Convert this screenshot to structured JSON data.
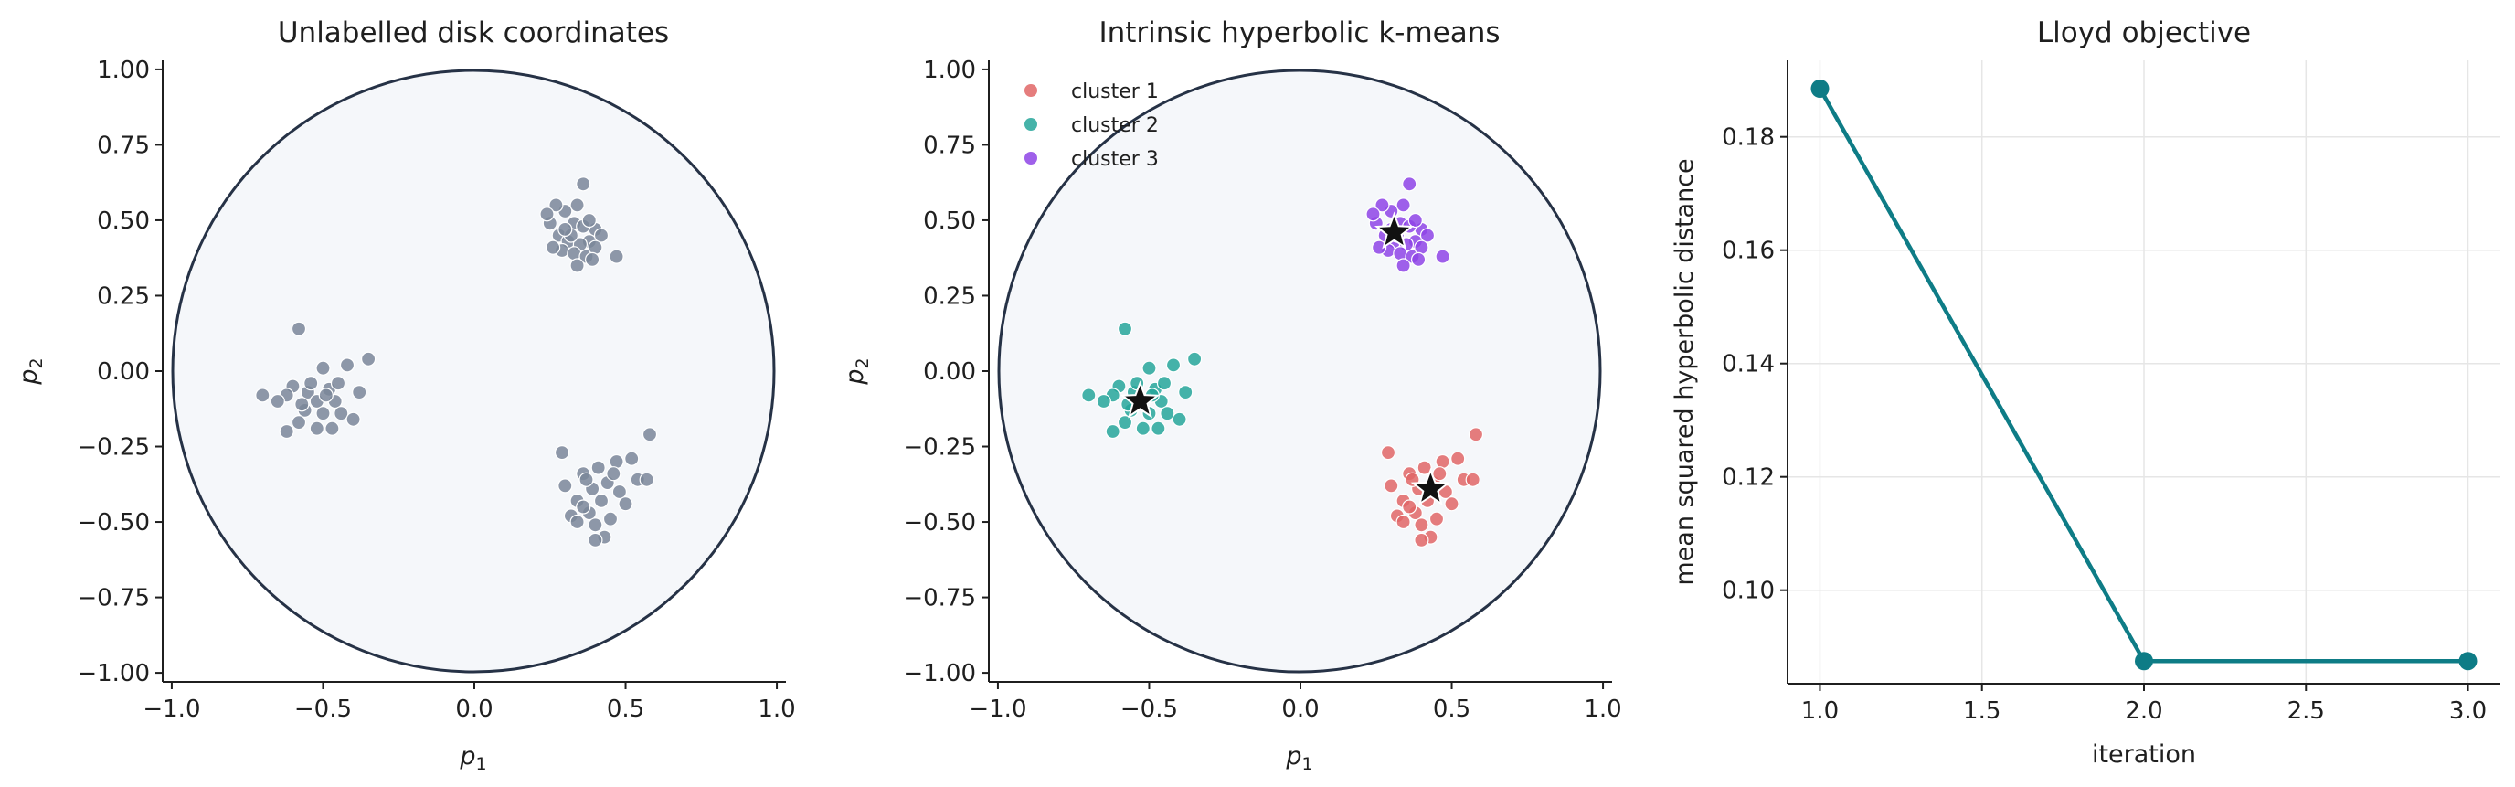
{
  "colors": {
    "unlabelled": "#7a8699",
    "cluster_1": "#e06666",
    "cluster_2": "#26a69a",
    "cluster_3": "#8e44e6",
    "disk_edge": "#263246",
    "disk_fill": "#f5f7fa",
    "objective_line": "#0e7c86",
    "centroid": "#111111"
  },
  "chart_data": [
    {
      "type": "scatter",
      "title": "Unlabelled disk coordinates",
      "xlabel": "p_1",
      "ylabel": "p_2",
      "xlim": [
        -1.03,
        1.03
      ],
      "ylim": [
        -1.03,
        1.03
      ],
      "xticks": [
        "−1.0",
        "−0.5",
        "0.0",
        "0.5",
        "1.0"
      ],
      "yticks": [
        "−1.00",
        "−0.75",
        "−0.50",
        "−0.25",
        "0.00",
        "0.25",
        "0.50",
        "0.75",
        "1.00"
      ],
      "disk": {
        "center": [
          0,
          0
        ],
        "radius": 1
      },
      "grid": false,
      "series": [
        {
          "color": "unlabelled",
          "points": [
            [
              0.3,
              0.53
            ],
            [
              0.34,
              0.55
            ],
            [
              0.25,
              0.49
            ],
            [
              0.33,
              0.49
            ],
            [
              0.4,
              0.47
            ],
            [
              0.36,
              0.62
            ],
            [
              0.28,
              0.45
            ],
            [
              0.31,
              0.43
            ],
            [
              0.38,
              0.43
            ],
            [
              0.42,
              0.45
            ],
            [
              0.35,
              0.42
            ],
            [
              0.29,
              0.4
            ],
            [
              0.33,
              0.39
            ],
            [
              0.37,
              0.38
            ],
            [
              0.4,
              0.41
            ],
            [
              0.47,
              0.38
            ],
            [
              0.27,
              0.55
            ],
            [
              0.32,
              0.45
            ],
            [
              0.24,
              0.52
            ],
            [
              0.36,
              0.48
            ],
            [
              0.3,
              0.47
            ],
            [
              0.38,
              0.5
            ],
            [
              0.26,
              0.41
            ],
            [
              0.34,
              0.35
            ],
            [
              0.39,
              0.37
            ],
            [
              -0.58,
              0.14
            ],
            [
              -0.35,
              0.04
            ],
            [
              -0.5,
              0.01
            ],
            [
              -0.42,
              0.02
            ],
            [
              -0.6,
              -0.05
            ],
            [
              -0.55,
              -0.07
            ],
            [
              -0.48,
              -0.06
            ],
            [
              -0.62,
              -0.08
            ],
            [
              -0.7,
              -0.08
            ],
            [
              -0.52,
              -0.1
            ],
            [
              -0.46,
              -0.1
            ],
            [
              -0.38,
              -0.07
            ],
            [
              -0.56,
              -0.13
            ],
            [
              -0.5,
              -0.14
            ],
            [
              -0.44,
              -0.14
            ],
            [
              -0.58,
              -0.17
            ],
            [
              -0.62,
              -0.2
            ],
            [
              -0.52,
              -0.19
            ],
            [
              -0.47,
              -0.19
            ],
            [
              -0.4,
              -0.16
            ],
            [
              -0.54,
              -0.04
            ],
            [
              -0.45,
              -0.04
            ],
            [
              -0.65,
              -0.1
            ],
            [
              -0.49,
              -0.08
            ],
            [
              -0.57,
              -0.11
            ],
            [
              0.29,
              -0.27
            ],
            [
              0.58,
              -0.21
            ],
            [
              0.36,
              -0.34
            ],
            [
              0.41,
              -0.32
            ],
            [
              0.47,
              -0.3
            ],
            [
              0.52,
              -0.29
            ],
            [
              0.54,
              -0.36
            ],
            [
              0.57,
              -0.36
            ],
            [
              0.44,
              -0.37
            ],
            [
              0.39,
              -0.39
            ],
            [
              0.48,
              -0.4
            ],
            [
              0.34,
              -0.43
            ],
            [
              0.42,
              -0.43
            ],
            [
              0.5,
              -0.44
            ],
            [
              0.32,
              -0.48
            ],
            [
              0.38,
              -0.47
            ],
            [
              0.45,
              -0.49
            ],
            [
              0.34,
              -0.5
            ],
            [
              0.4,
              -0.51
            ],
            [
              0.43,
              -0.55
            ],
            [
              0.4,
              -0.56
            ],
            [
              0.3,
              -0.38
            ],
            [
              0.36,
              -0.45
            ],
            [
              0.46,
              -0.34
            ],
            [
              0.37,
              -0.36
            ]
          ]
        }
      ]
    },
    {
      "type": "scatter",
      "title": "Intrinsic hyperbolic k-means",
      "xlabel": "p_1",
      "ylabel": "p_2",
      "xlim": [
        -1.03,
        1.03
      ],
      "ylim": [
        -1.03,
        1.03
      ],
      "xticks": [
        "−1.0",
        "−0.5",
        "0.0",
        "0.5",
        "1.0"
      ],
      "yticks": [
        "−1.00",
        "−0.75",
        "−0.50",
        "−0.25",
        "0.00",
        "0.25",
        "0.50",
        "0.75",
        "1.00"
      ],
      "disk": {
        "center": [
          0,
          0
        ],
        "radius": 1
      },
      "grid": false,
      "legend": {
        "placement": "top-left",
        "entries": [
          "cluster 1",
          "cluster 2",
          "cluster 3"
        ]
      },
      "series": [
        {
          "name": "cluster 1",
          "color": "cluster_1",
          "points": [
            [
              0.29,
              -0.27
            ],
            [
              0.58,
              -0.21
            ],
            [
              0.36,
              -0.34
            ],
            [
              0.41,
              -0.32
            ],
            [
              0.47,
              -0.3
            ],
            [
              0.52,
              -0.29
            ],
            [
              0.54,
              -0.36
            ],
            [
              0.57,
              -0.36
            ],
            [
              0.44,
              -0.37
            ],
            [
              0.39,
              -0.39
            ],
            [
              0.48,
              -0.4
            ],
            [
              0.34,
              -0.43
            ],
            [
              0.42,
              -0.43
            ],
            [
              0.5,
              -0.44
            ],
            [
              0.32,
              -0.48
            ],
            [
              0.38,
              -0.47
            ],
            [
              0.45,
              -0.49
            ],
            [
              0.34,
              -0.5
            ],
            [
              0.4,
              -0.51
            ],
            [
              0.43,
              -0.55
            ],
            [
              0.4,
              -0.56
            ],
            [
              0.3,
              -0.38
            ],
            [
              0.36,
              -0.45
            ],
            [
              0.46,
              -0.34
            ],
            [
              0.37,
              -0.36
            ]
          ]
        },
        {
          "name": "cluster 2",
          "color": "cluster_2",
          "points": [
            [
              -0.58,
              0.14
            ],
            [
              -0.35,
              0.04
            ],
            [
              -0.5,
              0.01
            ],
            [
              -0.42,
              0.02
            ],
            [
              -0.6,
              -0.05
            ],
            [
              -0.55,
              -0.07
            ],
            [
              -0.48,
              -0.06
            ],
            [
              -0.62,
              -0.08
            ],
            [
              -0.7,
              -0.08
            ],
            [
              -0.52,
              -0.1
            ],
            [
              -0.46,
              -0.1
            ],
            [
              -0.38,
              -0.07
            ],
            [
              -0.56,
              -0.13
            ],
            [
              -0.5,
              -0.14
            ],
            [
              -0.44,
              -0.14
            ],
            [
              -0.58,
              -0.17
            ],
            [
              -0.62,
              -0.2
            ],
            [
              -0.52,
              -0.19
            ],
            [
              -0.47,
              -0.19
            ],
            [
              -0.4,
              -0.16
            ],
            [
              -0.54,
              -0.04
            ],
            [
              -0.45,
              -0.04
            ],
            [
              -0.65,
              -0.1
            ],
            [
              -0.49,
              -0.08
            ],
            [
              -0.57,
              -0.11
            ]
          ]
        },
        {
          "name": "cluster 3",
          "color": "cluster_3",
          "points": [
            [
              0.3,
              0.53
            ],
            [
              0.34,
              0.55
            ],
            [
              0.25,
              0.49
            ],
            [
              0.33,
              0.49
            ],
            [
              0.4,
              0.47
            ],
            [
              0.36,
              0.62
            ],
            [
              0.28,
              0.45
            ],
            [
              0.31,
              0.43
            ],
            [
              0.38,
              0.43
            ],
            [
              0.42,
              0.45
            ],
            [
              0.35,
              0.42
            ],
            [
              0.29,
              0.4
            ],
            [
              0.33,
              0.39
            ],
            [
              0.37,
              0.38
            ],
            [
              0.4,
              0.41
            ],
            [
              0.47,
              0.38
            ],
            [
              0.27,
              0.55
            ],
            [
              0.32,
              0.45
            ],
            [
              0.24,
              0.52
            ],
            [
              0.36,
              0.48
            ],
            [
              0.3,
              0.47
            ],
            [
              0.38,
              0.5
            ],
            [
              0.26,
              0.41
            ],
            [
              0.34,
              0.35
            ],
            [
              0.39,
              0.37
            ]
          ]
        }
      ],
      "centroids": [
        [
          0.43,
          -0.39
        ],
        [
          -0.53,
          -0.1
        ],
        [
          0.31,
          0.46
        ]
      ]
    },
    {
      "type": "line",
      "title": "Lloyd objective",
      "xlabel": "iteration",
      "ylabel": "mean squared hyperbolic distance",
      "xlim": [
        0.9,
        3.1
      ],
      "ylim": [
        0.0835,
        0.1935
      ],
      "xticks": [
        "1.0",
        "1.5",
        "2.0",
        "2.5",
        "3.0"
      ],
      "yticks": [
        "0.10",
        "0.12",
        "0.14",
        "0.16",
        "0.18"
      ],
      "grid": true,
      "x": [
        1.0,
        2.0,
        3.0
      ],
      "series": [
        {
          "color": "objective_line",
          "values": [
            0.1885,
            0.0875,
            0.0875
          ]
        }
      ]
    }
  ]
}
